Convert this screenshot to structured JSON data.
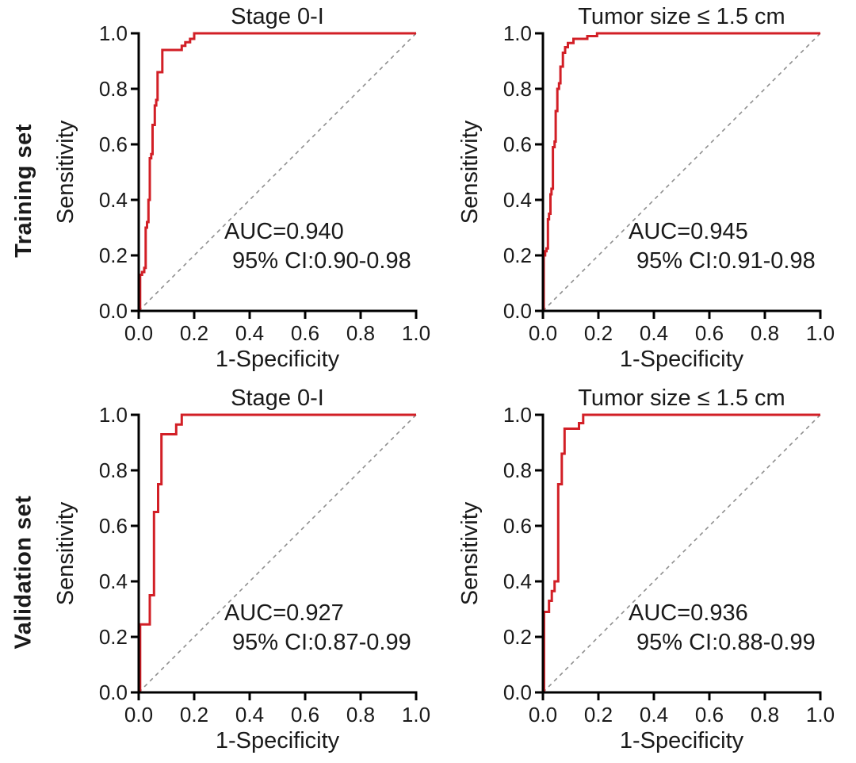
{
  "figure": {
    "background": "#ffffff",
    "colors": {
      "roc_curve": "#d21f26",
      "diagonal_reference": "#8f8f8f",
      "axis": "#000000",
      "text": "#1a1a1a"
    }
  },
  "chart_data": {
    "type": "line",
    "description": "2x2 grid of ROC curves (red stepped curve vs dashed chance diagonal)",
    "layout": {
      "rows": 2,
      "cols": 2,
      "grid": false,
      "legend": false
    },
    "xlabel": "1-Specificity",
    "ylabel": "Sensitivity",
    "xlim": [
      0,
      1
    ],
    "ylim": [
      0,
      1
    ],
    "x_ticks": [
      "0.0",
      "0.2",
      "0.4",
      "0.6",
      "0.8",
      "1.0"
    ],
    "y_ticks": [
      "0.0",
      "0.2",
      "0.4",
      "0.6",
      "0.8",
      "1.0"
    ],
    "row_labels": [
      "Training set",
      "Validation set"
    ],
    "panels": [
      {
        "row": "Training set",
        "title": "Stage 0-I",
        "auc": 0.94,
        "ci_95": "0.90-0.98",
        "annotation_line1": "AUC=0.940",
        "annotation_line2": "95% CI:0.90-0.98",
        "diagonal_reference": true,
        "roc_points": [
          [
            0.005,
            0
          ],
          [
            0.005,
            0.13
          ],
          [
            0.012,
            0.13
          ],
          [
            0.012,
            0.14
          ],
          [
            0.02,
            0.14
          ],
          [
            0.02,
            0.155
          ],
          [
            0.025,
            0.155
          ],
          [
            0.025,
            0.3
          ],
          [
            0.03,
            0.3
          ],
          [
            0.03,
            0.32
          ],
          [
            0.035,
            0.32
          ],
          [
            0.035,
            0.4
          ],
          [
            0.04,
            0.4
          ],
          [
            0.04,
            0.55
          ],
          [
            0.045,
            0.55
          ],
          [
            0.045,
            0.565
          ],
          [
            0.05,
            0.565
          ],
          [
            0.05,
            0.67
          ],
          [
            0.058,
            0.67
          ],
          [
            0.058,
            0.74
          ],
          [
            0.063,
            0.74
          ],
          [
            0.063,
            0.76
          ],
          [
            0.068,
            0.76
          ],
          [
            0.068,
            0.86
          ],
          [
            0.085,
            0.86
          ],
          [
            0.085,
            0.94
          ],
          [
            0.155,
            0.94
          ],
          [
            0.155,
            0.955
          ],
          [
            0.168,
            0.955
          ],
          [
            0.168,
            0.968
          ],
          [
            0.185,
            0.968
          ],
          [
            0.185,
            0.98
          ],
          [
            0.2,
            0.98
          ],
          [
            0.2,
            1.0
          ],
          [
            1,
            1
          ]
        ]
      },
      {
        "row": "Training set",
        "title": "Tumor size ≤ 1.5 cm",
        "auc": 0.945,
        "ci_95": "0.91-0.98",
        "annotation_line1": "AUC=0.945",
        "annotation_line2": "95% CI:0.91-0.98",
        "diagonal_reference": true,
        "roc_points": [
          [
            0.003,
            0
          ],
          [
            0.003,
            0.2
          ],
          [
            0.008,
            0.2
          ],
          [
            0.008,
            0.215
          ],
          [
            0.013,
            0.215
          ],
          [
            0.013,
            0.225
          ],
          [
            0.018,
            0.225
          ],
          [
            0.018,
            0.33
          ],
          [
            0.022,
            0.33
          ],
          [
            0.022,
            0.35
          ],
          [
            0.027,
            0.35
          ],
          [
            0.027,
            0.42
          ],
          [
            0.031,
            0.42
          ],
          [
            0.031,
            0.44
          ],
          [
            0.036,
            0.44
          ],
          [
            0.036,
            0.59
          ],
          [
            0.042,
            0.59
          ],
          [
            0.042,
            0.61
          ],
          [
            0.046,
            0.61
          ],
          [
            0.046,
            0.72
          ],
          [
            0.052,
            0.72
          ],
          [
            0.052,
            0.8
          ],
          [
            0.058,
            0.8
          ],
          [
            0.058,
            0.82
          ],
          [
            0.063,
            0.82
          ],
          [
            0.063,
            0.88
          ],
          [
            0.072,
            0.88
          ],
          [
            0.072,
            0.93
          ],
          [
            0.08,
            0.93
          ],
          [
            0.08,
            0.95
          ],
          [
            0.09,
            0.95
          ],
          [
            0.09,
            0.965
          ],
          [
            0.11,
            0.965
          ],
          [
            0.11,
            0.98
          ],
          [
            0.16,
            0.98
          ],
          [
            0.16,
            0.99
          ],
          [
            0.195,
            0.99
          ],
          [
            0.195,
            1.0
          ],
          [
            1,
            1
          ]
        ]
      },
      {
        "row": "Validation set",
        "title": "Stage 0-I",
        "auc": 0.927,
        "ci_95": "0.87-0.99",
        "annotation_line1": "AUC=0.927",
        "annotation_line2": "95% CI:0.87-0.99",
        "diagonal_reference": true,
        "roc_points": [
          [
            0.005,
            0
          ],
          [
            0.005,
            0.245
          ],
          [
            0.04,
            0.245
          ],
          [
            0.04,
            0.35
          ],
          [
            0.055,
            0.35
          ],
          [
            0.055,
            0.65
          ],
          [
            0.07,
            0.65
          ],
          [
            0.07,
            0.75
          ],
          [
            0.082,
            0.75
          ],
          [
            0.082,
            0.93
          ],
          [
            0.135,
            0.93
          ],
          [
            0.135,
            0.965
          ],
          [
            0.155,
            0.965
          ],
          [
            0.155,
            1.0
          ],
          [
            1,
            1
          ]
        ]
      },
      {
        "row": "Validation set",
        "title": "Tumor size ≤ 1.5 cm",
        "auc": 0.936,
        "ci_95": "0.88-0.99",
        "annotation_line1": "AUC=0.936",
        "annotation_line2": "95% CI:0.88-0.99",
        "diagonal_reference": true,
        "roc_points": [
          [
            0.004,
            0
          ],
          [
            0.004,
            0.29
          ],
          [
            0.022,
            0.29
          ],
          [
            0.022,
            0.33
          ],
          [
            0.032,
            0.33
          ],
          [
            0.032,
            0.365
          ],
          [
            0.042,
            0.365
          ],
          [
            0.042,
            0.4
          ],
          [
            0.055,
            0.4
          ],
          [
            0.055,
            0.75
          ],
          [
            0.068,
            0.75
          ],
          [
            0.068,
            0.86
          ],
          [
            0.078,
            0.86
          ],
          [
            0.078,
            0.95
          ],
          [
            0.13,
            0.95
          ],
          [
            0.13,
            0.97
          ],
          [
            0.145,
            0.97
          ],
          [
            0.145,
            1.0
          ],
          [
            1,
            1
          ]
        ]
      }
    ]
  }
}
